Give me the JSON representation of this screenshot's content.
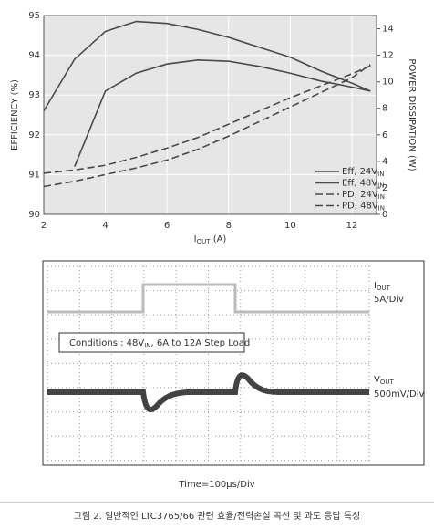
{
  "chart_data": {
    "type": "line",
    "x": [
      2,
      3,
      4,
      5,
      6,
      7,
      8,
      9,
      10,
      11,
      12,
      12.6
    ],
    "xlim": [
      2,
      12.8
    ],
    "xticks": [
      2,
      4,
      6,
      8,
      10,
      12
    ],
    "ylim": [
      90,
      95
    ],
    "yticks": [
      90,
      91,
      92,
      93,
      94,
      95
    ],
    "y2lim": [
      0,
      15
    ],
    "y2ticks": [
      0,
      2,
      4,
      6,
      8,
      10,
      12,
      14
    ],
    "xlabel": "IOUT (A)",
    "ylabel": "EFFICIENCY (%)",
    "y2label": "POWER DISSIPATION (W)",
    "grid": true,
    "legend": "lower right",
    "series": [
      {
        "name": "Eff, 24VIN",
        "color": "#4a4a4a",
        "dashed": false,
        "values": [
          92.6,
          93.9,
          94.6,
          94.85,
          94.8,
          94.65,
          94.45,
          94.2,
          93.95,
          93.6,
          93.3,
          93.1
        ]
      },
      {
        "name": "Eff, 48VIN",
        "color": "#4a4a4a",
        "dashed": false,
        "values": [
          null,
          91.2,
          93.1,
          93.55,
          93.78,
          93.88,
          93.85,
          93.72,
          93.55,
          93.35,
          93.2,
          93.1
        ]
      },
      {
        "name": "PD, 24VIN",
        "color": "#4a4a4a",
        "dashed": true,
        "axis": "y2",
        "values": [
          3.1,
          3.35,
          3.7,
          4.3,
          5.0,
          5.8,
          6.8,
          7.8,
          8.8,
          9.7,
          10.6,
          11.2
        ]
      },
      {
        "name": "PD, 48VIN",
        "color": "#4a4a4a",
        "dashed": true,
        "axis": "y2",
        "values": [
          2.1,
          2.5,
          3.0,
          3.5,
          4.1,
          4.9,
          5.9,
          7.0,
          8.1,
          9.2,
          10.3,
          11.3
        ]
      }
    ]
  },
  "scope": {
    "iout_label": "IOUT",
    "iout_scale": "5A/Div",
    "vout_label": "VOUT",
    "vout_scale": "500mV/Div",
    "conditions": "Conditions : 48VIN, 6A to 12A Step Load",
    "time": "Time=100µs/Div"
  },
  "caption": "그림 2. 일반적인 LTC3765/66 관련 효율/전력손실 곡선 및 과도 응답 특성"
}
